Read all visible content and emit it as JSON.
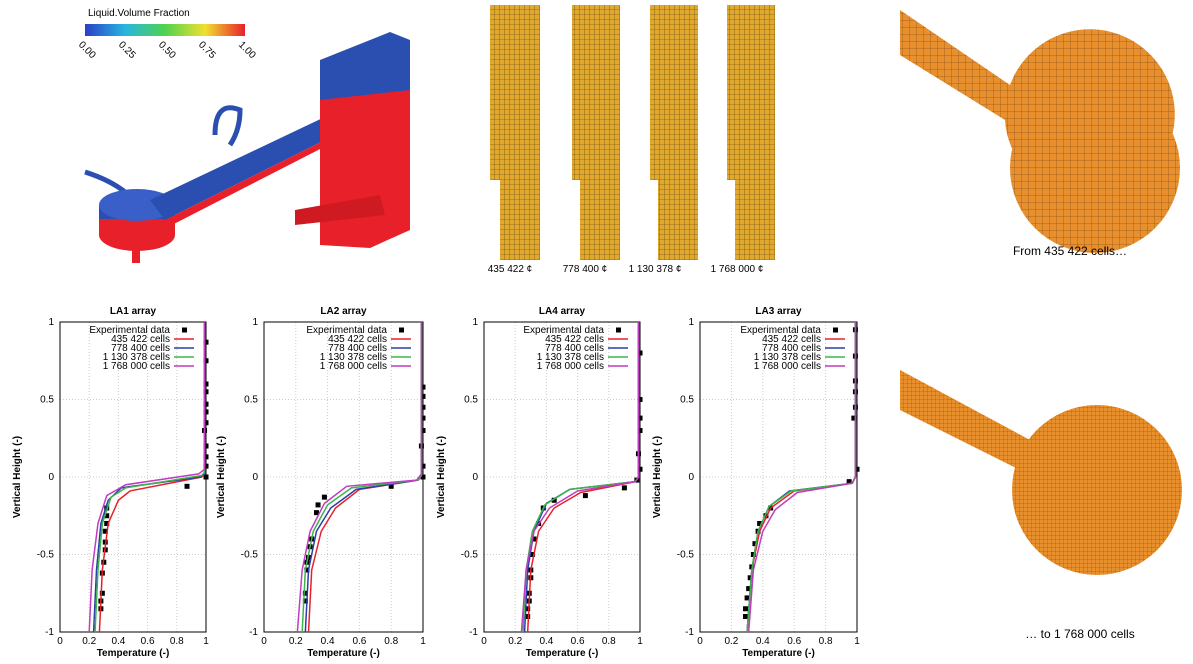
{
  "colorbar": {
    "title": "Liquid.Volume Fraction",
    "range": [
      0,
      1
    ],
    "ticks": [
      {
        "value": 0,
        "label": "0.00"
      },
      {
        "value": 0.25,
        "label": "0.25"
      },
      {
        "value": 0.5,
        "label": "0.50"
      },
      {
        "value": 0.75,
        "label": "0.75"
      },
      {
        "value": 1,
        "label": "1.00"
      }
    ]
  },
  "mesh_labels": [
    "435 422 ¢",
    "778 400 ¢",
    "1 130 378 ¢",
    "1 768 000 ¢"
  ],
  "captions": [
    "From 435 422 cells…",
    "… to 1 768 000 cells"
  ],
  "chart_data": [
    {
      "type": "line",
      "title": "LA1 array",
      "xlabel": "Temperature (-)",
      "ylabel": "Vertical Height (-)",
      "xlim": [
        0,
        1
      ],
      "ylim": [
        -1,
        1
      ],
      "xticks": [
        0,
        0.2,
        0.4,
        0.6,
        0.8,
        1
      ],
      "yticks": [
        -1,
        -0.5,
        0,
        0.5,
        1
      ],
      "grid": true,
      "legend": "top-right",
      "series": [
        {
          "name": "Experimental data",
          "color": "#000000",
          "marker": "square",
          "x": [
            0.32,
            0.32,
            0.32,
            0.31,
            0.31,
            0.31,
            0.3,
            0.29,
            0.29,
            0.28,
            0.28,
            0.87,
            1,
            1,
            1,
            1,
            0.99,
            1,
            1,
            1,
            1,
            1,
            1,
            1
          ],
          "y": [
            -0.2,
            -0.25,
            -0.3,
            -0.35,
            -0.42,
            -0.47,
            -0.55,
            -0.62,
            -0.75,
            -0.8,
            -0.85,
            -0.06,
            0,
            0.07,
            0.13,
            0.2,
            0.3,
            0.35,
            0.42,
            0.47,
            0.55,
            0.6,
            0.75,
            0.87
          ]
        },
        {
          "name": "435 422 cells",
          "color": "#e8202a",
          "x": [
            0.27,
            0.29,
            0.33,
            0.4,
            0.48,
            0.97,
            0.99,
            0.99
          ],
          "y": [
            -1,
            -0.6,
            -0.3,
            -0.15,
            -0.09,
            0,
            0.02,
            1
          ]
        },
        {
          "name": "778 400 cells",
          "color": "#2a3fa8",
          "x": [
            0.23,
            0.25,
            0.28,
            0.33,
            0.42,
            0.96,
            0.99,
            0.99
          ],
          "y": [
            -1,
            -0.6,
            -0.3,
            -0.15,
            -0.07,
            0,
            0.02,
            1
          ]
        },
        {
          "name": "1 130 378 cells",
          "color": "#3db54a",
          "x": [
            0.24,
            0.26,
            0.29,
            0.35,
            0.45,
            0.97,
            0.99,
            0.99
          ],
          "y": [
            -1,
            -0.6,
            -0.3,
            -0.13,
            -0.07,
            0.01,
            0.03,
            1
          ]
        },
        {
          "name": "1 768 000 cells",
          "color": "#c03cc0",
          "x": [
            0.2,
            0.22,
            0.26,
            0.32,
            0.45,
            0.95,
            0.99,
            0.99
          ],
          "y": [
            -1,
            -0.6,
            -0.3,
            -0.12,
            -0.05,
            0.02,
            0.05,
            1
          ]
        }
      ]
    },
    {
      "type": "line",
      "title": "LA2 array",
      "xlabel": "Temperature (-)",
      "ylabel": "Vertical Height (-)",
      "xlim": [
        0,
        1
      ],
      "ylim": [
        -1,
        1
      ],
      "xticks": [
        0,
        0.2,
        0.4,
        0.6,
        0.8,
        1
      ],
      "yticks": [
        -1,
        -0.5,
        0,
        0.5,
        1
      ],
      "grid": true,
      "legend": "top-right",
      "series": [
        {
          "name": "Experimental data",
          "color": "#000000",
          "marker": "square",
          "x": [
            0.38,
            0.34,
            0.33,
            0.3,
            0.29,
            0.28,
            0.27,
            0.27,
            0.26,
            0.26,
            0.8,
            1,
            1,
            0.99,
            1,
            1,
            1,
            1,
            1
          ],
          "y": [
            -0.13,
            -0.18,
            -0.23,
            -0.4,
            -0.45,
            -0.52,
            -0.55,
            -0.6,
            -0.75,
            -0.8,
            -0.06,
            0,
            0.07,
            0.2,
            0.3,
            0.38,
            0.45,
            0.52,
            0.58
          ]
        },
        {
          "name": "435 422 cells",
          "color": "#e8202a",
          "x": [
            0.28,
            0.3,
            0.36,
            0.45,
            0.6,
            0.97,
            0.99,
            0.99
          ],
          "y": [
            -1,
            -0.6,
            -0.35,
            -0.2,
            -0.08,
            -0.02,
            0.01,
            1
          ]
        },
        {
          "name": "778 400 cells",
          "color": "#2a3fa8",
          "x": [
            0.26,
            0.28,
            0.33,
            0.42,
            0.58,
            0.97,
            0.99,
            0.99
          ],
          "y": [
            -1,
            -0.6,
            -0.35,
            -0.2,
            -0.08,
            -0.02,
            0.01,
            1
          ]
        },
        {
          "name": "1 130 378 cells",
          "color": "#3db54a",
          "x": [
            0.24,
            0.26,
            0.31,
            0.4,
            0.55,
            0.97,
            0.99,
            0.99
          ],
          "y": [
            -1,
            -0.6,
            -0.35,
            -0.18,
            -0.07,
            -0.02,
            0.01,
            1
          ]
        },
        {
          "name": "1 768 000 cells",
          "color": "#c03cc0",
          "x": [
            0.21,
            0.24,
            0.29,
            0.38,
            0.52,
            0.96,
            0.99,
            0.99
          ],
          "y": [
            -1,
            -0.6,
            -0.35,
            -0.17,
            -0.06,
            -0.02,
            0.02,
            1
          ]
        }
      ]
    },
    {
      "type": "line",
      "title": "LA4 array",
      "xlabel": "Temperature (-)",
      "ylabel": "Vertical Height (-)",
      "xlim": [
        0,
        1
      ],
      "ylim": [
        -1,
        1
      ],
      "xticks": [
        0,
        0.2,
        0.4,
        0.6,
        0.8,
        1
      ],
      "yticks": [
        -1,
        -0.5,
        0,
        0.5,
        1
      ],
      "grid": true,
      "legend": "top-right",
      "series": [
        {
          "name": "Experimental data",
          "color": "#000000",
          "marker": "square",
          "x": [
            0.45,
            0.38,
            0.35,
            0.32,
            0.31,
            0.3,
            0.3,
            0.29,
            0.29,
            0.28,
            0.28,
            0.65,
            0.9,
            0.98,
            1,
            0.99,
            1,
            1,
            1,
            1
          ],
          "y": [
            -0.15,
            -0.2,
            -0.3,
            -0.4,
            -0.5,
            -0.6,
            -0.65,
            -0.75,
            -0.8,
            -0.85,
            -0.9,
            -0.12,
            -0.07,
            -0.02,
            0.05,
            0.15,
            0.3,
            0.38,
            0.5,
            0.8
          ]
        },
        {
          "name": "435 422 cells",
          "color": "#e8202a",
          "x": [
            0.28,
            0.3,
            0.35,
            0.45,
            0.62,
            0.97,
            0.99,
            0.99
          ],
          "y": [
            -1,
            -0.6,
            -0.35,
            -0.2,
            -0.1,
            -0.03,
            0,
            1
          ]
        },
        {
          "name": "778 400 cells",
          "color": "#2a3fa8",
          "x": [
            0.26,
            0.28,
            0.32,
            0.4,
            0.55,
            0.97,
            0.99,
            0.99
          ],
          "y": [
            -1,
            -0.6,
            -0.35,
            -0.17,
            -0.08,
            -0.03,
            0,
            1
          ]
        },
        {
          "name": "1 130 378 cells",
          "color": "#3db54a",
          "x": [
            0.25,
            0.27,
            0.31,
            0.39,
            0.55,
            0.97,
            0.99,
            0.99
          ],
          "y": [
            -1,
            -0.6,
            -0.35,
            -0.18,
            -0.08,
            -0.03,
            0,
            1
          ]
        },
        {
          "name": "1 768 000 cells",
          "color": "#c03cc0",
          "x": [
            0.24,
            0.27,
            0.32,
            0.42,
            0.6,
            0.97,
            0.99,
            0.99
          ],
          "y": [
            -1,
            -0.6,
            -0.35,
            -0.2,
            -0.09,
            -0.03,
            0,
            1
          ]
        }
      ]
    },
    {
      "type": "line",
      "title": "LA3 array",
      "xlabel": "Temperature (-)",
      "ylabel": "Vertical Height (-)",
      "xlim": [
        0,
        1
      ],
      "ylim": [
        -1,
        1
      ],
      "xticks": [
        0,
        0.2,
        0.4,
        0.6,
        0.8,
        1
      ],
      "yticks": [
        -1,
        -0.5,
        0,
        0.5,
        1
      ],
      "grid": true,
      "legend": "top-right",
      "series": [
        {
          "name": "Experimental data",
          "color": "#000000",
          "marker": "square",
          "x": [
            0.45,
            0.42,
            0.38,
            0.37,
            0.35,
            0.34,
            0.33,
            0.32,
            0.31,
            0.3,
            0.29,
            0.29,
            0.95,
            1,
            0.98,
            0.99,
            0.99,
            0.99,
            0.99,
            0.99
          ],
          "y": [
            -0.2,
            -0.25,
            -0.3,
            -0.35,
            -0.43,
            -0.5,
            -0.58,
            -0.65,
            -0.72,
            -0.78,
            -0.85,
            -0.9,
            -0.03,
            0.05,
            0.38,
            0.45,
            0.55,
            0.62,
            0.78,
            0.95
          ]
        },
        {
          "name": "435 422 cells",
          "color": "#e8202a",
          "x": [
            0.3,
            0.33,
            0.38,
            0.45,
            0.6,
            0.97,
            0.99,
            0.99
          ],
          "y": [
            -1,
            -0.6,
            -0.35,
            -0.2,
            -0.09,
            -0.04,
            0,
            1
          ]
        },
        {
          "name": "778 400 cells",
          "color": "#2a3fa8",
          "x": [
            0.3,
            0.33,
            0.37,
            0.44,
            0.57,
            0.97,
            0.99,
            0.99
          ],
          "y": [
            -1,
            -0.6,
            -0.35,
            -0.19,
            -0.09,
            -0.04,
            0,
            1
          ]
        },
        {
          "name": "1 130 378 cells",
          "color": "#3db54a",
          "x": [
            0.3,
            0.33,
            0.37,
            0.44,
            0.58,
            0.97,
            0.99,
            0.99
          ],
          "y": [
            -1,
            -0.6,
            -0.35,
            -0.19,
            -0.09,
            -0.04,
            0,
            1
          ]
        },
        {
          "name": "1 768 000 cells",
          "color": "#c03cc0",
          "x": [
            0.31,
            0.34,
            0.4,
            0.48,
            0.62,
            0.97,
            0.99,
            0.99
          ],
          "y": [
            -1,
            -0.6,
            -0.35,
            -0.21,
            -0.1,
            -0.04,
            0,
            1
          ]
        }
      ]
    }
  ]
}
